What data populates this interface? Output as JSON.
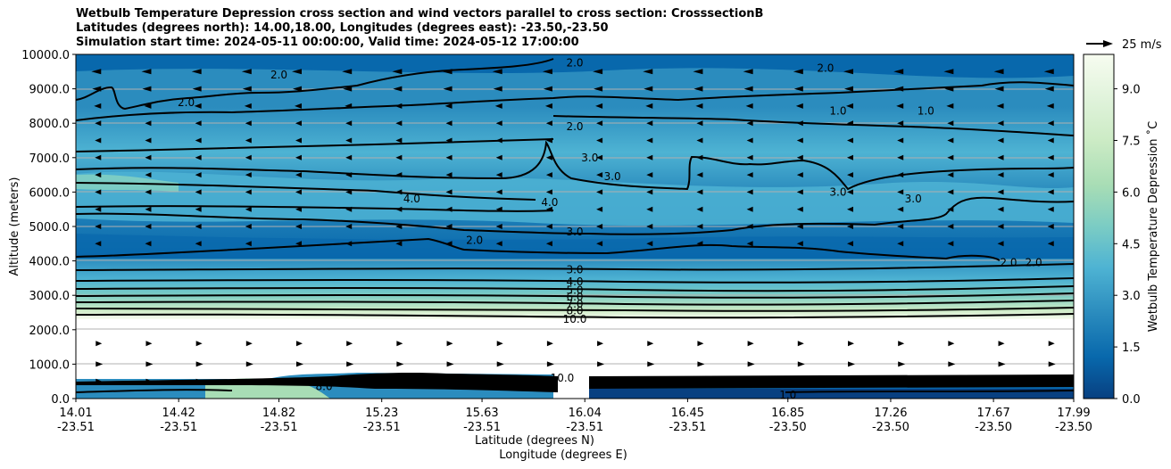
{
  "chart_data": {
    "type": "heatmap",
    "title_lines": [
      "Wetbulb Temperature Depression cross section and wind vectors parallel to cross section: CrosssectionB",
      "Latitudes (degrees north): 14.00,18.00, Longitudes (degrees east): -23.50,-23.50",
      "Simulation start time: 2024-05-11 00:00:00, Valid time: 2024-05-12 17:00:00"
    ],
    "ylabel": "Altitude (meters)",
    "xlabel_lat": "Latitude (degrees N)",
    "xlabel_lon": "Longitude (degrees E)",
    "ylim": [
      0,
      10000
    ],
    "y_ticks": [
      "0.0",
      "1000.0",
      "2000.0",
      "3000.0",
      "4000.0",
      "5000.0",
      "6000.0",
      "7000.0",
      "8000.0",
      "9000.0",
      "10000.0"
    ],
    "x_ticks": [
      {
        "lat": "14.01",
        "lon": "-23.51"
      },
      {
        "lat": "14.42",
        "lon": "-23.51"
      },
      {
        "lat": "14.82",
        "lon": "-23.51"
      },
      {
        "lat": "15.23",
        "lon": "-23.51"
      },
      {
        "lat": "15.63",
        "lon": "-23.51"
      },
      {
        "lat": "16.04",
        "lon": "-23.51"
      },
      {
        "lat": "16.45",
        "lon": "-23.51"
      },
      {
        "lat": "16.85",
        "lon": "-23.50"
      },
      {
        "lat": "17.26",
        "lon": "-23.50"
      },
      {
        "lat": "17.67",
        "lon": "-23.50"
      },
      {
        "lat": "17.99",
        "lon": "-23.50"
      }
    ],
    "colorbar": {
      "label": "Wetbulb Temperature Depression ˚C",
      "range": [
        0,
        10
      ],
      "ticks": [
        "0.0",
        "1.5",
        "3.0",
        "4.5",
        "6.0",
        "7.5",
        "9.0"
      ],
      "colors": [
        "#084081",
        "#0868ac",
        "#2b8cbe",
        "#4eb3d3",
        "#7bccc4",
        "#a8ddb5",
        "#ccebc5",
        "#e0f3db",
        "#f7fcf0"
      ]
    },
    "wind_key": "25 m/s",
    "contour_labels": [
      {
        "text": "2.0",
        "lat": 14.82,
        "alt": 9400
      },
      {
        "text": "2.0",
        "lat": 14.45,
        "alt": 8600
      },
      {
        "text": "2.0",
        "lat": 16.0,
        "alt": 9750
      },
      {
        "text": "2.0",
        "lat": 17.0,
        "alt": 9600
      },
      {
        "text": "1.0",
        "lat": 17.05,
        "alt": 8350
      },
      {
        "text": "1.0",
        "lat": 17.4,
        "alt": 8350
      },
      {
        "text": "2.0",
        "lat": 16.0,
        "alt": 7900
      },
      {
        "text": "3.0",
        "lat": 16.06,
        "alt": 7000
      },
      {
        "text": "3.0",
        "lat": 16.15,
        "alt": 6450
      },
      {
        "text": "3.0",
        "lat": 17.05,
        "alt": 6000
      },
      {
        "text": "3.0",
        "lat": 17.35,
        "alt": 5800
      },
      {
        "text": "4.0",
        "lat": 15.35,
        "alt": 5800
      },
      {
        "text": "4.0",
        "lat": 15.9,
        "alt": 5700
      },
      {
        "text": "3.0",
        "lat": 16.0,
        "alt": 4850
      },
      {
        "text": "2.0",
        "lat": 15.6,
        "alt": 4600
      },
      {
        "text": "2.0",
        "lat": 17.73,
        "alt": 3950
      },
      {
        "text": "2.0",
        "lat": 17.83,
        "alt": 3950
      },
      {
        "text": "3.0",
        "lat": 16.0,
        "alt": 3750
      },
      {
        "text": "4.0",
        "lat": 16.0,
        "alt": 3400
      },
      {
        "text": "5.0",
        "lat": 16.0,
        "alt": 3150
      },
      {
        "text": "6.0",
        "lat": 16.0,
        "alt": 2950
      },
      {
        "text": "7.0",
        "lat": 16.0,
        "alt": 2750
      },
      {
        "text": "8.0",
        "lat": 16.0,
        "alt": 2550
      },
      {
        "text": "10.0",
        "lat": 16.0,
        "alt": 2300
      },
      {
        "text": "10.0",
        "lat": 15.95,
        "alt": 600
      },
      {
        "text": "1.0",
        "lat": 16.85,
        "alt": 100
      },
      {
        "text": "8.0",
        "lat": 15.0,
        "alt": 350
      }
    ]
  }
}
